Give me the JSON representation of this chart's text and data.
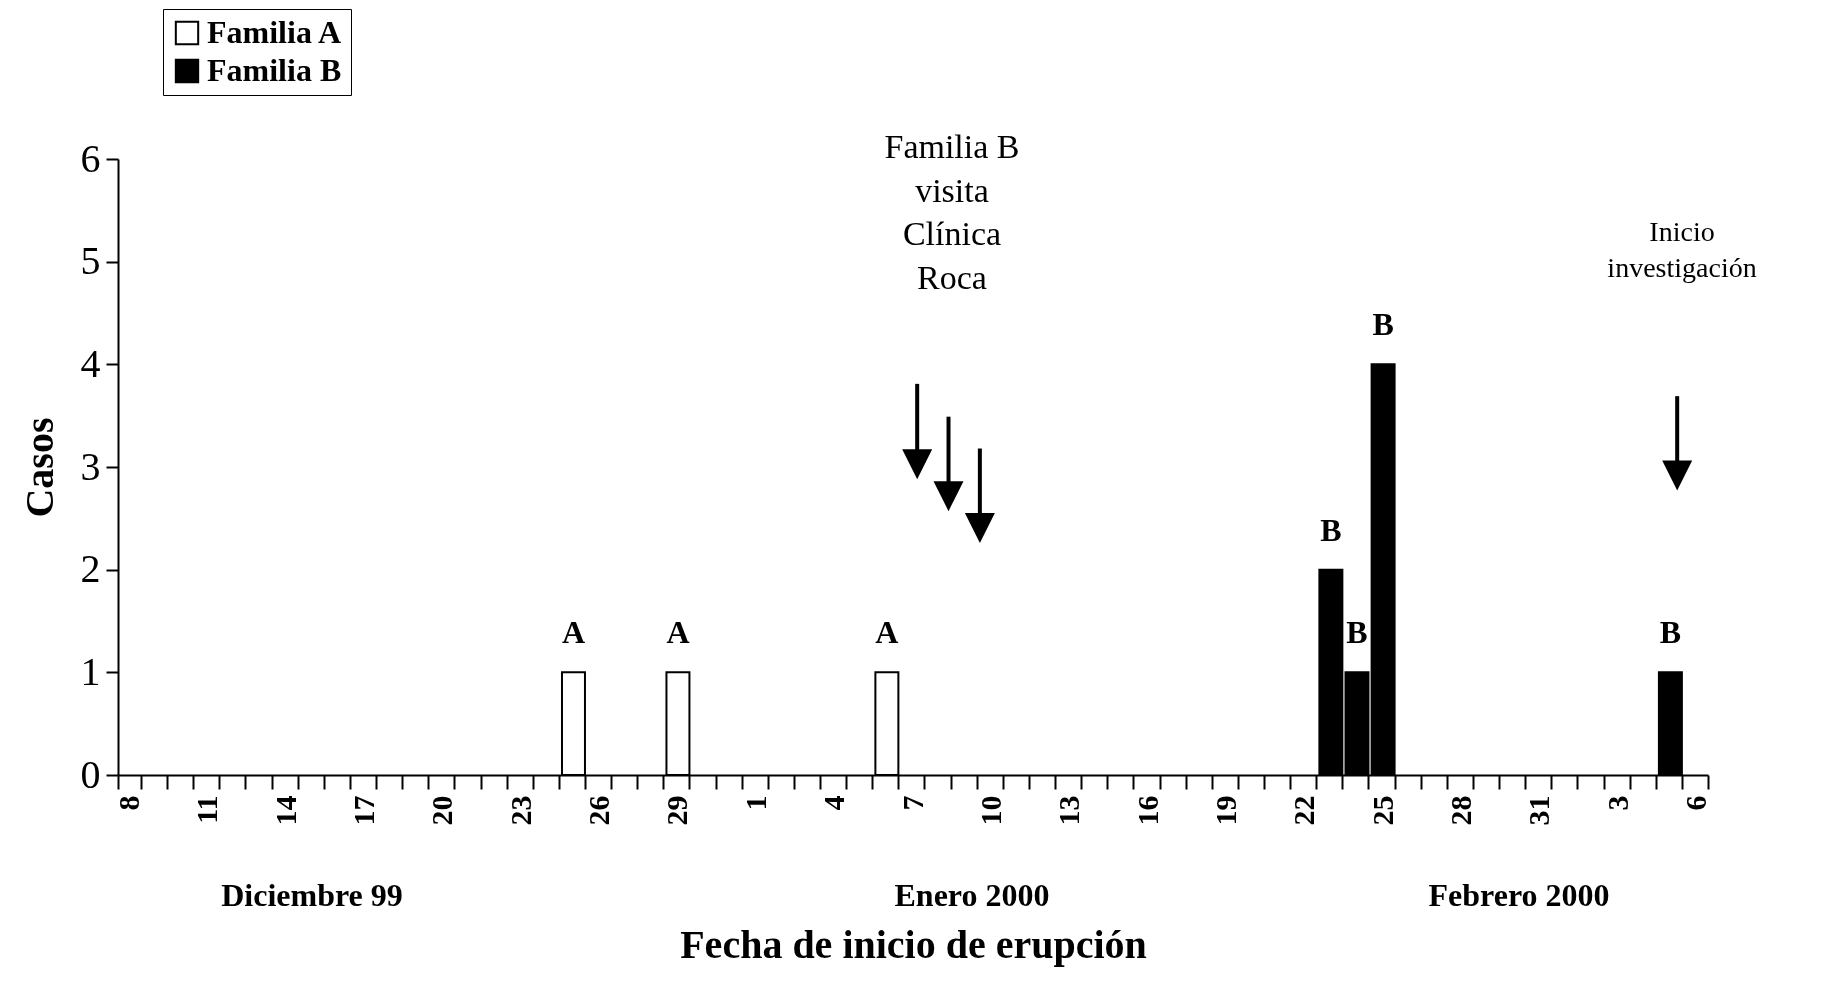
{
  "chart_data": {
    "type": "bar",
    "xlabel": "Fecha de inicio de erupción",
    "ylabel": "Casos",
    "categories": [
      "8",
      null,
      null,
      "11",
      null,
      null,
      "14",
      null,
      null,
      "17",
      null,
      null,
      "20",
      null,
      null,
      "23",
      null,
      null,
      "26",
      null,
      null,
      "29",
      null,
      null,
      "1",
      null,
      null,
      "4",
      null,
      null,
      "7",
      null,
      null,
      "10",
      null,
      null,
      "13",
      null,
      null,
      "16",
      null,
      null,
      "19",
      null,
      null,
      "22",
      null,
      null,
      "25",
      null,
      null,
      "28",
      null,
      null,
      "31",
      null,
      null,
      "3",
      null,
      null,
      "6"
    ],
    "series": [
      {
        "name": "Familia A",
        "color": "#ffffff",
        "values": [
          null,
          null,
          null,
          null,
          null,
          null,
          null,
          null,
          null,
          null,
          null,
          null,
          null,
          null,
          null,
          null,
          null,
          1,
          null,
          null,
          null,
          1,
          null,
          null,
          null,
          null,
          null,
          null,
          null,
          1,
          null,
          null,
          null,
          null,
          null,
          null,
          null,
          null,
          null,
          null,
          null,
          null,
          null,
          null,
          null,
          null,
          null,
          null,
          null,
          null,
          null,
          null,
          null,
          null,
          null,
          null,
          null,
          null,
          null,
          null,
          null
        ],
        "value_labels": [
          null,
          null,
          null,
          null,
          null,
          null,
          null,
          null,
          null,
          null,
          null,
          null,
          null,
          null,
          null,
          null,
          null,
          "A",
          null,
          null,
          null,
          "A",
          null,
          null,
          null,
          null,
          null,
          null,
          null,
          "A",
          null,
          null,
          null,
          null,
          null,
          null,
          null,
          null,
          null,
          null,
          null,
          null,
          null,
          null,
          null,
          null,
          null,
          null,
          null,
          null,
          null,
          null,
          null,
          null,
          null,
          null,
          null,
          null,
          null,
          null,
          null
        ]
      },
      {
        "name": "Familia B",
        "color": "#000000",
        "values": [
          null,
          null,
          null,
          null,
          null,
          null,
          null,
          null,
          null,
          null,
          null,
          null,
          null,
          null,
          null,
          null,
          null,
          null,
          null,
          null,
          null,
          null,
          null,
          null,
          null,
          null,
          null,
          null,
          null,
          null,
          null,
          null,
          null,
          null,
          null,
          null,
          null,
          null,
          null,
          null,
          null,
          null,
          null,
          null,
          null,
          null,
          2,
          1,
          4,
          null,
          null,
          null,
          null,
          null,
          null,
          null,
          null,
          null,
          null,
          1,
          null
        ],
        "value_labels": [
          null,
          null,
          null,
          null,
          null,
          null,
          null,
          null,
          null,
          null,
          null,
          null,
          null,
          null,
          null,
          null,
          null,
          null,
          null,
          null,
          null,
          null,
          null,
          null,
          null,
          null,
          null,
          null,
          null,
          null,
          null,
          null,
          null,
          null,
          null,
          null,
          null,
          null,
          null,
          null,
          null,
          null,
          null,
          null,
          null,
          null,
          "B",
          "B",
          "B",
          null,
          null,
          null,
          null,
          null,
          null,
          null,
          null,
          null,
          null,
          "B",
          null
        ]
      }
    ],
    "ylim": [
      0,
      6
    ],
    "yticks": [
      0,
      1,
      2,
      3,
      4,
      5,
      6
    ],
    "grid": false,
    "legend": "top left",
    "annotations": [
      "Familia B\nvisita\nClínica\nRoca",
      "Inicio\ninvestigación",
      "Diciembre 99",
      "Enero 2000",
      "Febrero 2000"
    ]
  }
}
